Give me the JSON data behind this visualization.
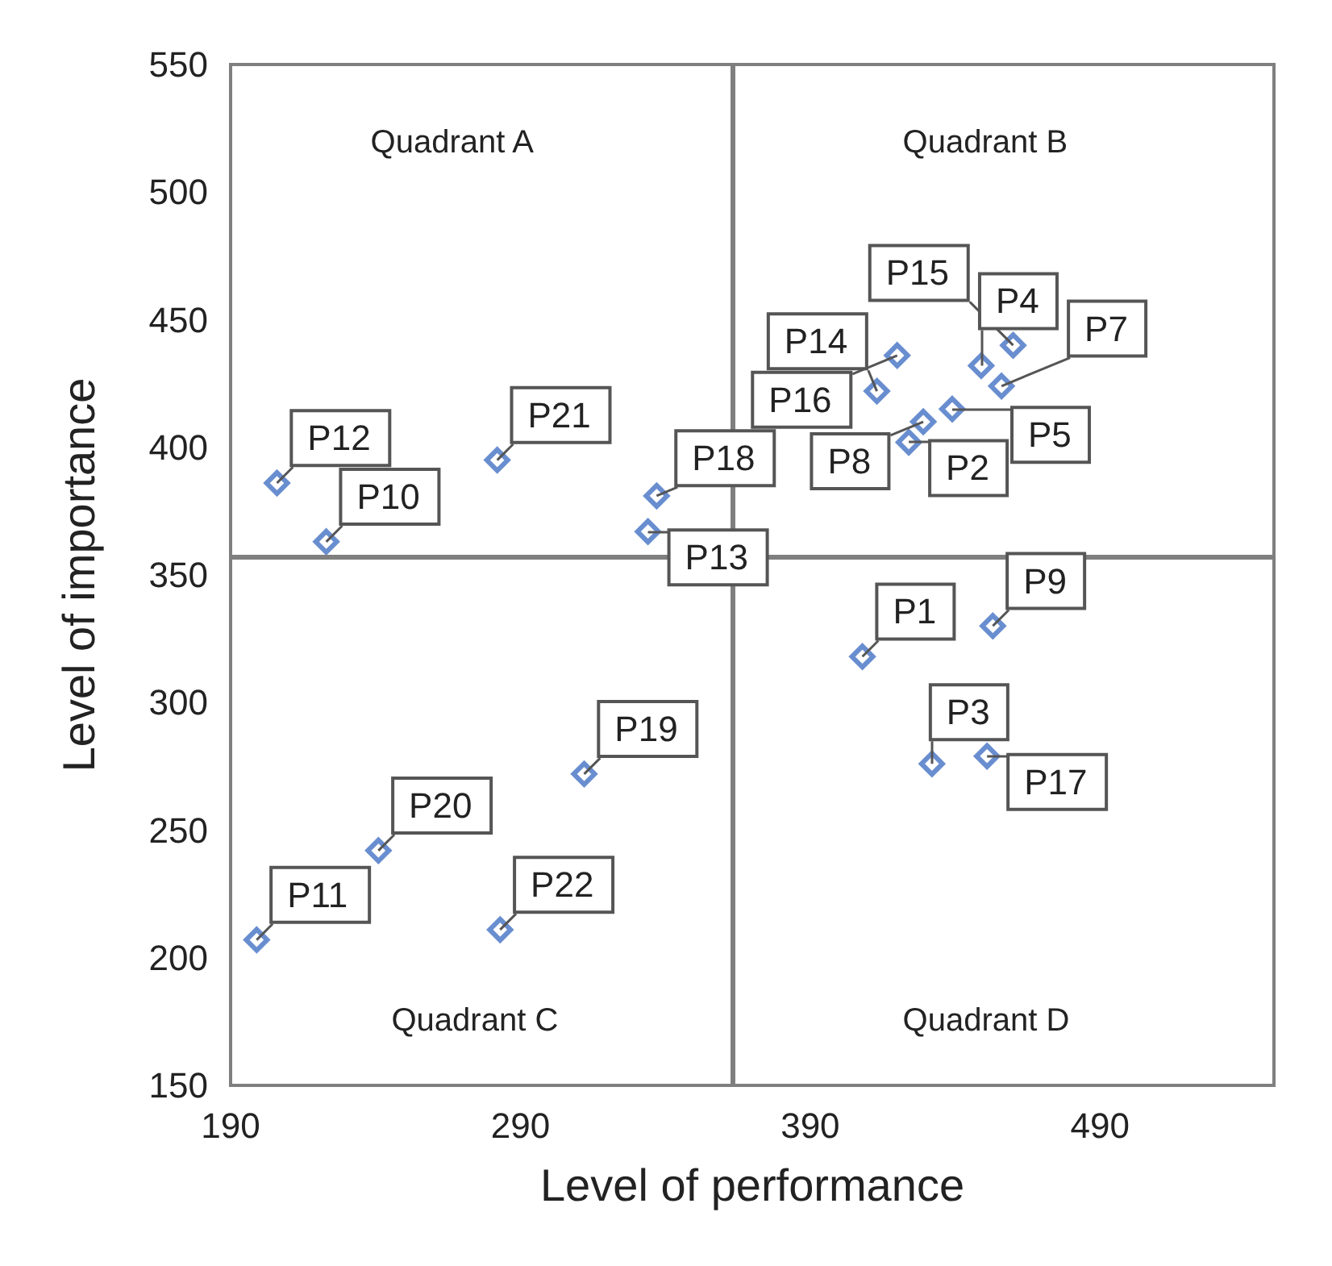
{
  "chart_data": {
    "type": "scatter",
    "xlabel": "Level of performance",
    "ylabel": "Level of importance",
    "xlim": [
      190,
      550
    ],
    "xticks": [
      190,
      290,
      390,
      490
    ],
    "ylim": [
      150,
      550
    ],
    "yticks": [
      150,
      200,
      250,
      300,
      350,
      400,
      450,
      500,
      550
    ],
    "grid": false,
    "marker": "diamond",
    "series": [
      {
        "color": "#4472c4",
        "x": [
          408,
          424,
          432,
          449,
          439,
          456,
          429,
          453,
          223,
          199,
          206,
          334,
          413,
          460,
          420,
          451,
          337,
          312,
          241,
          282,
          283
        ],
        "values": [
          318,
          402,
          276,
          432,
          415,
          424,
          410,
          330,
          363,
          207,
          386,
          367,
          422,
          440,
          436,
          279,
          381,
          272,
          242,
          395,
          211
        ]
      }
    ],
    "ref_lines": [
      {
        "axis": "x",
        "value": 363,
        "color": "#7f7f7f"
      },
      {
        "axis": "y",
        "value": 357,
        "color": "#7f7f7f"
      }
    ],
    "annotations": [
      "Quadrant A",
      "Quadrant B",
      "Quadrant C",
      "Quadrant D",
      {
        "text": "P1",
        "x": 408,
        "y": 318
      },
      {
        "text": "P2",
        "x": 424,
        "y": 402
      },
      {
        "text": "P3",
        "x": 432,
        "y": 276
      },
      {
        "text": "P4",
        "x": 449,
        "y": 432
      },
      {
        "text": "P5",
        "x": 439,
        "y": 415
      },
      {
        "text": "P7",
        "x": 456,
        "y": 424
      },
      {
        "text": "P8",
        "x": 429,
        "y": 410
      },
      {
        "text": "P9",
        "x": 453,
        "y": 330
      },
      {
        "text": "P10",
        "x": 223,
        "y": 363
      },
      {
        "text": "P11",
        "x": 199,
        "y": 207
      },
      {
        "text": "P12",
        "x": 206,
        "y": 386
      },
      {
        "text": "P13",
        "x": 334,
        "y": 367
      },
      {
        "text": "P14",
        "x": 413,
        "y": 422
      },
      {
        "text": "P15",
        "x": 460,
        "y": 440
      },
      {
        "text": "P16",
        "x": 420,
        "y": 436
      },
      {
        "text": "P17",
        "x": 451,
        "y": 279
      },
      {
        "text": "P18",
        "x": 337,
        "y": 381
      },
      {
        "text": "P19",
        "x": 312,
        "y": 272
      },
      {
        "text": "P20",
        "x": 241,
        "y": 242
      },
      {
        "text": "P21",
        "x": 282,
        "y": 395
      },
      {
        "text": "P22",
        "x": 283,
        "y": 211
      }
    ]
  }
}
